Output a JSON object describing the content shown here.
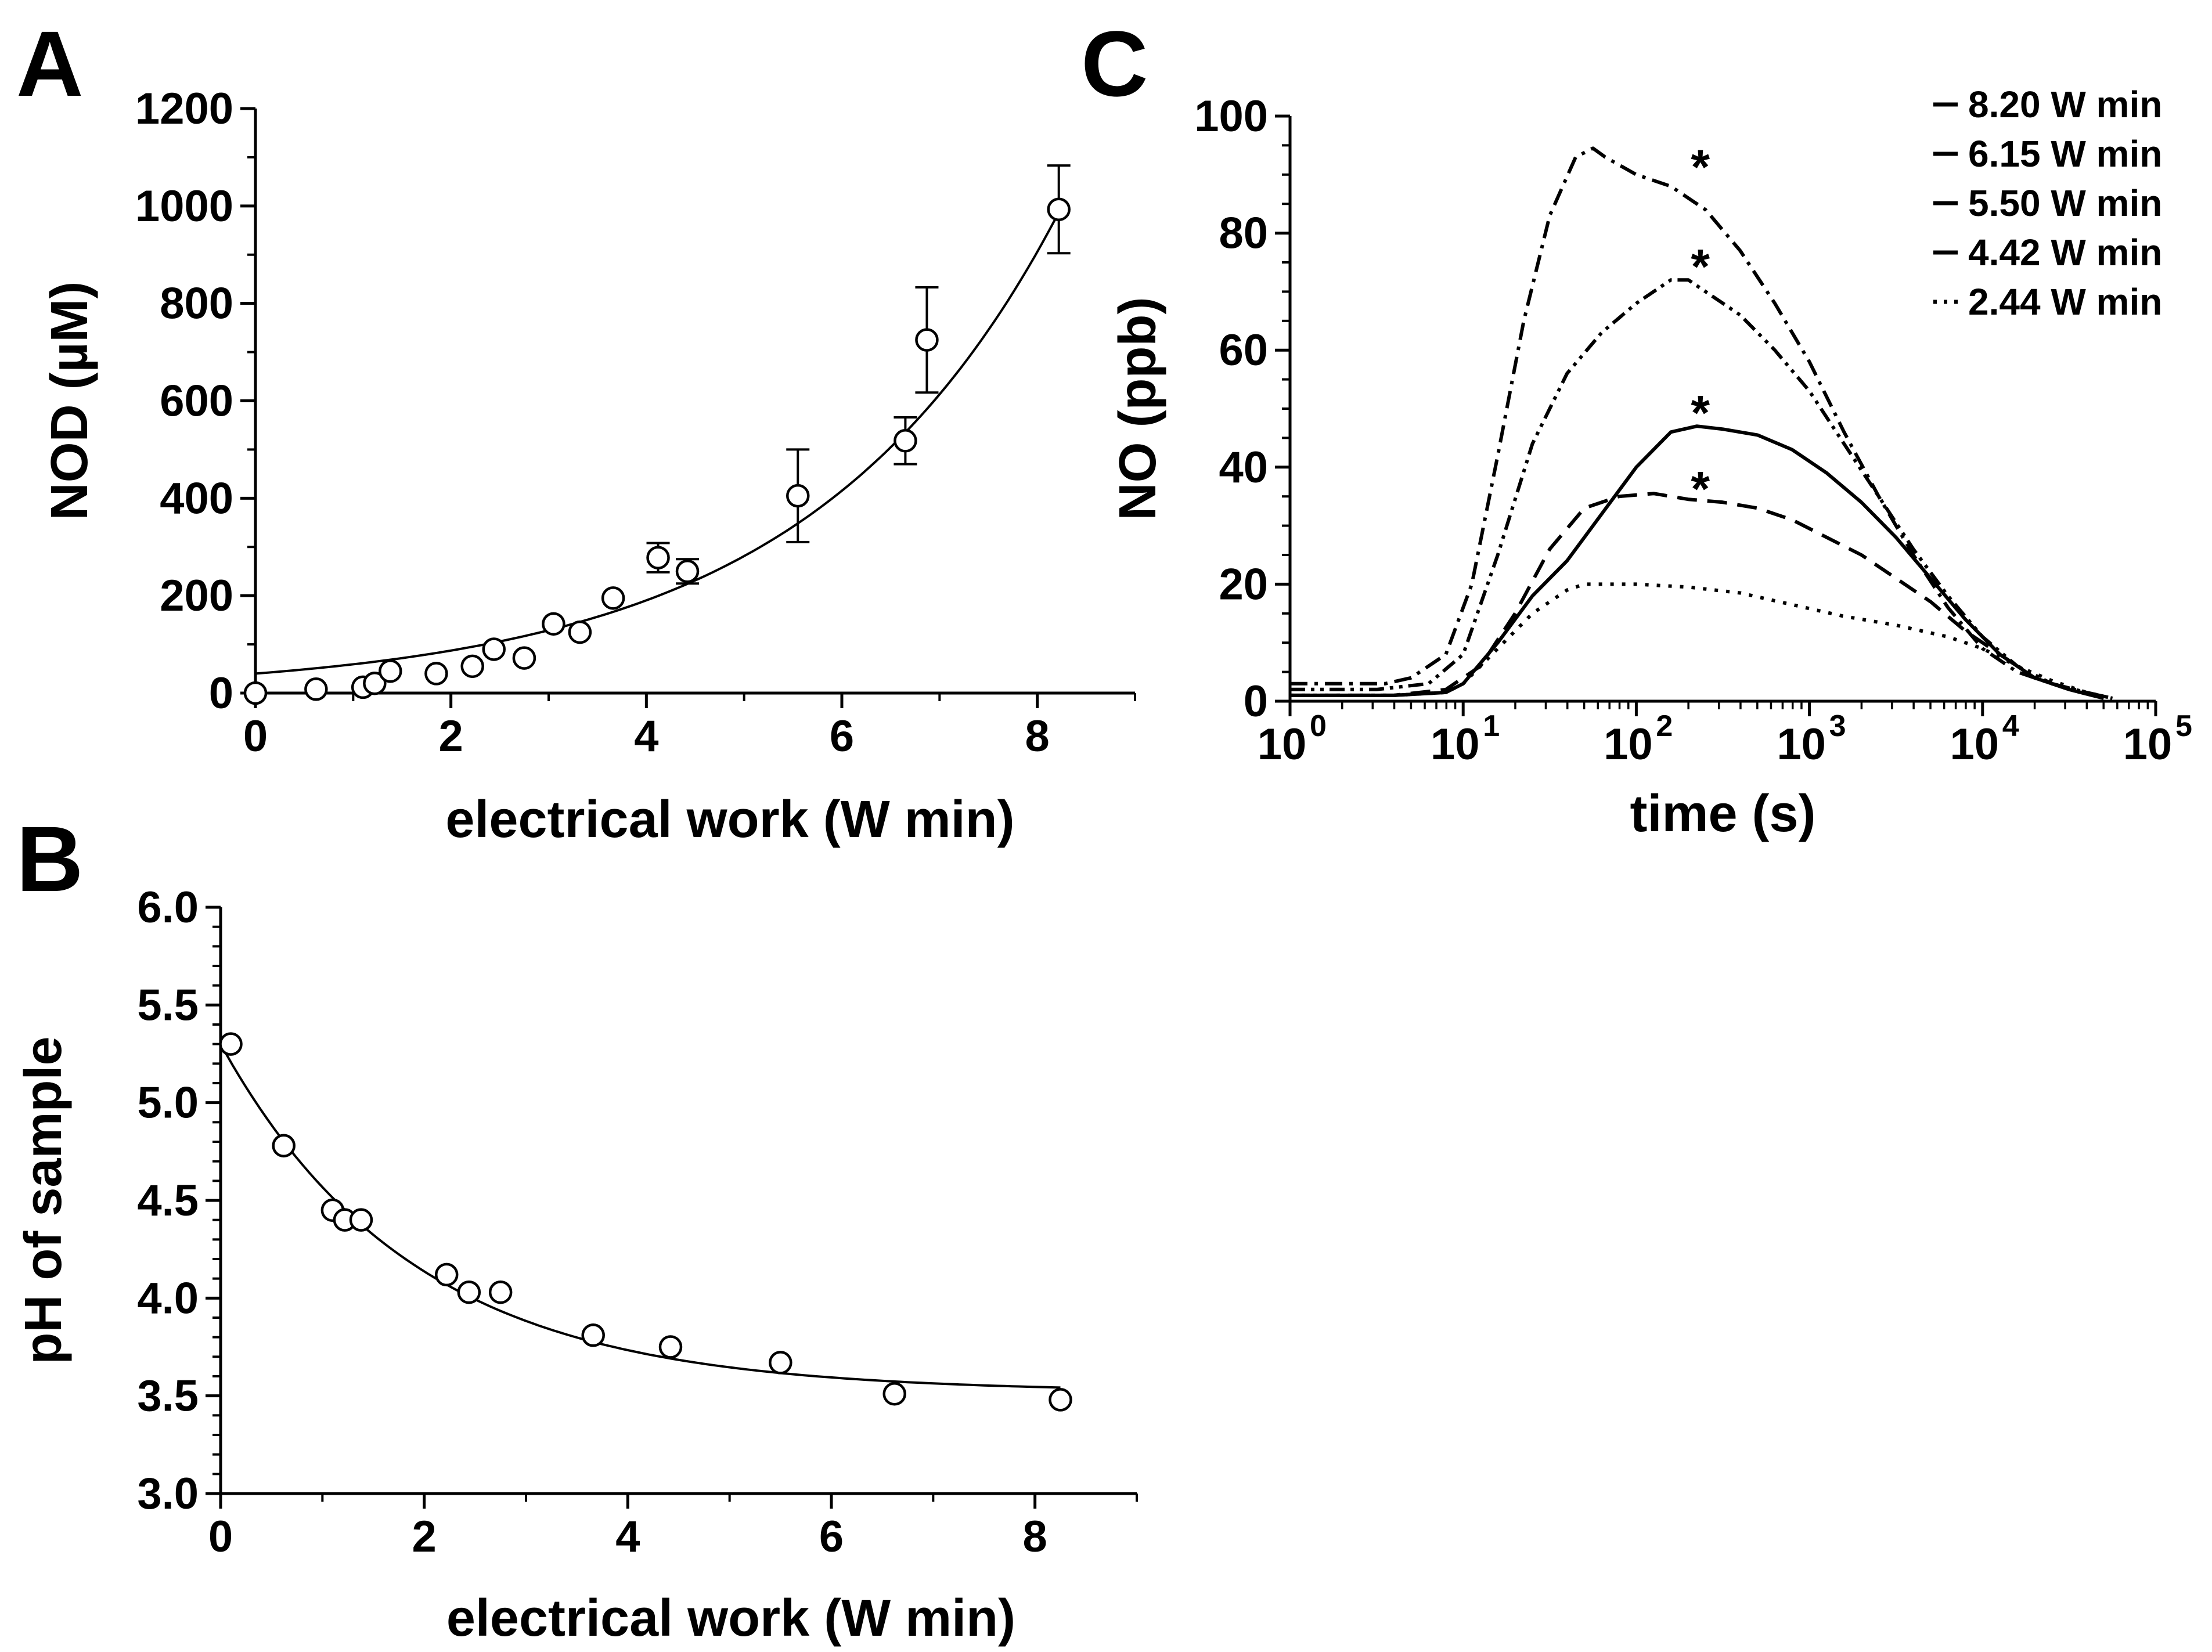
{
  "chart_data": [
    {
      "panel": "A",
      "type": "scatter",
      "xlabel": "electrical work (W min)",
      "ylabel": "NOD (µM)",
      "xlim": [
        0,
        9
      ],
      "ylim": [
        0,
        1200
      ],
      "xticks": [
        0,
        2,
        4,
        6,
        8
      ],
      "yticks": [
        0,
        200,
        400,
        600,
        800,
        1000,
        1200
      ],
      "points": [
        {
          "x": 0.0,
          "y": 0
        },
        {
          "x": 0.62,
          "y": 8
        },
        {
          "x": 1.1,
          "y": 12
        },
        {
          "x": 1.22,
          "y": 20
        },
        {
          "x": 1.38,
          "y": 45
        },
        {
          "x": 1.85,
          "y": 40
        },
        {
          "x": 2.22,
          "y": 55
        },
        {
          "x": 2.44,
          "y": 90
        },
        {
          "x": 2.75,
          "y": 72
        },
        {
          "x": 3.05,
          "y": 142
        },
        {
          "x": 3.32,
          "y": 125
        },
        {
          "x": 3.66,
          "y": 195
        },
        {
          "x": 4.12,
          "y": 278,
          "err": 30
        },
        {
          "x": 4.42,
          "y": 250,
          "err": 25
        },
        {
          "x": 5.55,
          "y": 405,
          "err": 95
        },
        {
          "x": 6.65,
          "y": 518,
          "err": 48
        },
        {
          "x": 6.87,
          "y": 725,
          "err": 108
        },
        {
          "x": 8.22,
          "y": 993,
          "err": 90
        }
      ],
      "fit": {
        "kind": "exponential",
        "y0": 40,
        "k": 0.39,
        "x_range": [
          0,
          8.25
        ]
      }
    },
    {
      "panel": "B",
      "type": "scatter",
      "xlabel": "electrical work (W min)",
      "ylabel": "pH of sample",
      "xlim": [
        0,
        9
      ],
      "ylim": [
        3.0,
        6.0
      ],
      "xticks": [
        0,
        2,
        4,
        6,
        8
      ],
      "yticks": [
        3.0,
        3.5,
        4.0,
        4.5,
        5.0,
        5.5,
        6.0
      ],
      "points": [
        {
          "x": 0.1,
          "y": 5.3
        },
        {
          "x": 0.62,
          "y": 4.78
        },
        {
          "x": 1.1,
          "y": 4.45
        },
        {
          "x": 1.22,
          "y": 4.4
        },
        {
          "x": 1.38,
          "y": 4.4
        },
        {
          "x": 2.22,
          "y": 4.12
        },
        {
          "x": 2.44,
          "y": 4.03
        },
        {
          "x": 2.75,
          "y": 4.03
        },
        {
          "x": 3.66,
          "y": 3.81
        },
        {
          "x": 4.42,
          "y": 3.75
        },
        {
          "x": 5.5,
          "y": 3.67
        },
        {
          "x": 6.62,
          "y": 3.51
        },
        {
          "x": 8.25,
          "y": 3.48
        }
      ],
      "fit": {
        "kind": "exp-decay",
        "plateau": 3.52,
        "span": 1.78,
        "k": 0.53,
        "x_range": [
          0.05,
          8.25
        ]
      }
    },
    {
      "panel": "C",
      "type": "line",
      "xscale": "log",
      "xlabel": "time (s)",
      "ylabel": "NO (ppb)",
      "xlim_exp": [
        0,
        5
      ],
      "ylim": [
        0,
        100
      ],
      "yticks": [
        0,
        20,
        40,
        60,
        80,
        100
      ],
      "xtick_base": "10",
      "xtick_exponents": [
        "0",
        "1",
        "2",
        "3",
        "4",
        "5"
      ],
      "legend_position": "top-right",
      "series": [
        {
          "name": "8.20 W min",
          "dash": "dashdot",
          "log10_t": [
            0,
            0.3,
            0.55,
            0.7,
            0.9,
            1.05,
            1.2,
            1.35,
            1.5,
            1.65,
            1.75,
            1.82,
            2.0,
            2.2,
            2.4,
            2.6,
            2.8,
            3.0,
            3.2,
            3.4,
            3.6,
            3.8,
            4.0,
            4.2,
            4.4,
            4.6,
            4.75
          ],
          "y": [
            3,
            3,
            3,
            4,
            8,
            20,
            42,
            65,
            83,
            93,
            94.5,
            93,
            90,
            88,
            84,
            77,
            68,
            58,
            46,
            35,
            25,
            16,
            9,
            5,
            3,
            1.5,
            0.5
          ]
        },
        {
          "name": "6.15 W min",
          "dash": "dashdotdot",
          "log10_t": [
            0,
            0.5,
            0.8,
            1.0,
            1.2,
            1.4,
            1.6,
            1.8,
            2.0,
            2.2,
            2.3,
            2.4,
            2.6,
            2.8,
            3.0,
            3.2,
            3.4,
            3.6,
            3.8,
            4.0,
            4.2,
            4.4,
            4.6,
            4.75
          ],
          "y": [
            2,
            2,
            3,
            8,
            25,
            44,
            56,
            63,
            68,
            72,
            72,
            70,
            66,
            60,
            53,
            44,
            35,
            26,
            18,
            11,
            6,
            3,
            1.5,
            0.5
          ]
        },
        {
          "name": "5.50 W min",
          "dash": "solid",
          "log10_t": [
            0,
            0.6,
            0.9,
            1.0,
            1.2,
            1.4,
            1.6,
            1.8,
            2.0,
            2.2,
            2.35,
            2.5,
            2.7,
            2.9,
            3.1,
            3.3,
            3.5,
            3.7,
            3.9,
            4.1,
            4.3,
            4.5,
            4.7
          ],
          "y": [
            1,
            1,
            1.5,
            3,
            10,
            18,
            24,
            32,
            40,
            46,
            47,
            46.5,
            45.5,
            43,
            39,
            34,
            28,
            21,
            14,
            8,
            4,
            2,
            0.5
          ]
        },
        {
          "name": "4.42 W min",
          "dash": "dashed",
          "log10_t": [
            0,
            0.6,
            0.9,
            1.1,
            1.3,
            1.5,
            1.7,
            1.9,
            2.1,
            2.3,
            2.5,
            2.7,
            2.9,
            3.1,
            3.3,
            3.5,
            3.7,
            3.9,
            4.1,
            4.3,
            4.5,
            4.7
          ],
          "y": [
            1,
            1,
            2,
            6,
            15,
            26,
            33,
            35,
            35.5,
            34.5,
            34,
            33,
            31,
            28,
            25,
            21,
            17,
            12,
            8,
            4,
            2,
            0.5
          ]
        },
        {
          "name": "2.44 W min",
          "dash": "dotted",
          "log10_t": [
            0,
            0.6,
            0.9,
            1.0,
            1.2,
            1.4,
            1.6,
            1.7,
            2.0,
            2.3,
            2.6,
            2.9,
            3.2,
            3.5,
            3.8,
            4.0,
            4.2,
            4.4,
            4.6,
            4.75
          ],
          "y": [
            1,
            1,
            1.5,
            3,
            9,
            15,
            19,
            20,
            20,
            19.5,
            18.5,
            16.5,
            14.5,
            13,
            11,
            9,
            6,
            3.5,
            1.5,
            0.5
          ]
        }
      ],
      "annotations": [
        {
          "text": "*",
          "log10_t": 2.37,
          "y": 93
        },
        {
          "text": "*",
          "log10_t": 2.37,
          "y": 76
        },
        {
          "text": "*",
          "log10_t": 2.37,
          "y": 51
        },
        {
          "text": "*",
          "log10_t": 2.37,
          "y": 38
        }
      ]
    }
  ]
}
